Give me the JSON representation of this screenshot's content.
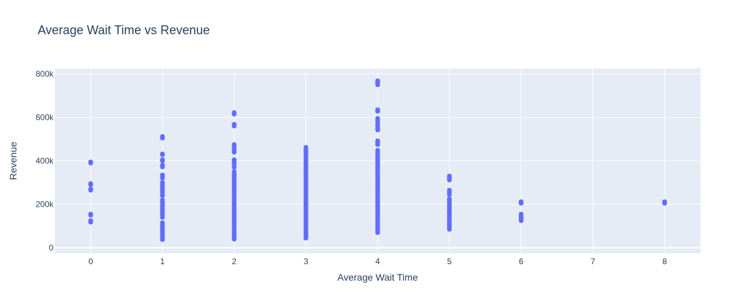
{
  "chart_data": {
    "type": "scatter",
    "title": "Average Wait Time vs Revenue",
    "xlabel": "Average Wait Time",
    "ylabel": "Revenue",
    "xlim": [
      -0.5,
      8.5
    ],
    "ylim": [
      -25000,
      825000
    ],
    "xticks": [
      0,
      1,
      2,
      3,
      4,
      5,
      6,
      7,
      8
    ],
    "yticks": [
      0,
      200000,
      400000,
      600000,
      800000
    ],
    "ytick_labels": [
      "0",
      "200k",
      "400k",
      "600k",
      "800k"
    ],
    "grid": true,
    "legend": "none",
    "colors": {
      "marker": "#636efa",
      "plot_bg": "#e5ecf6",
      "grid": "#ffffff",
      "text": "#2a3f5f"
    },
    "points": [
      {
        "x": 0,
        "y": 395000
      },
      {
        "x": 0,
        "y": 390000
      },
      {
        "x": 0,
        "y": 295000
      },
      {
        "x": 0,
        "y": 290000
      },
      {
        "x": 0,
        "y": 270000
      },
      {
        "x": 0,
        "y": 265000
      },
      {
        "x": 0,
        "y": 155000
      },
      {
        "x": 0,
        "y": 150000
      },
      {
        "x": 0,
        "y": 125000
      },
      {
        "x": 0,
        "y": 118000
      },
      {
        "x": 1,
        "y": 512000
      },
      {
        "x": 1,
        "y": 505000
      },
      {
        "x": 1,
        "y": 432000
      },
      {
        "x": 1,
        "y": 428000
      },
      {
        "x": 1,
        "y": 405000
      },
      {
        "x": 1,
        "y": 400000
      },
      {
        "x": 1,
        "y": 380000
      },
      {
        "x": 1,
        "y": 372000
      },
      {
        "x": 1,
        "y": 335000
      },
      {
        "x": 1,
        "y": 328000
      },
      {
        "x": 1,
        "y": 320000
      },
      {
        "x": 1,
        "y": 300000
      },
      {
        "x": 1,
        "y": 290000
      },
      {
        "x": 1,
        "y": 282000
      },
      {
        "x": 1,
        "y": 272000
      },
      {
        "x": 1,
        "y": 262000
      },
      {
        "x": 1,
        "y": 252000
      },
      {
        "x": 1,
        "y": 240000
      },
      {
        "x": 1,
        "y": 220000
      },
      {
        "x": 1,
        "y": 210000
      },
      {
        "x": 1,
        "y": 200000
      },
      {
        "x": 1,
        "y": 190000
      },
      {
        "x": 1,
        "y": 180000
      },
      {
        "x": 1,
        "y": 170000
      },
      {
        "x": 1,
        "y": 160000
      },
      {
        "x": 1,
        "y": 150000
      },
      {
        "x": 1,
        "y": 140000
      },
      {
        "x": 1,
        "y": 115000
      },
      {
        "x": 1,
        "y": 105000
      },
      {
        "x": 1,
        "y": 95000
      },
      {
        "x": 1,
        "y": 85000
      },
      {
        "x": 1,
        "y": 75000
      },
      {
        "x": 1,
        "y": 65000
      },
      {
        "x": 1,
        "y": 55000
      },
      {
        "x": 1,
        "y": 45000
      },
      {
        "x": 1,
        "y": 38000
      },
      {
        "x": 2,
        "y": 622000
      },
      {
        "x": 2,
        "y": 615000
      },
      {
        "x": 2,
        "y": 568000
      },
      {
        "x": 2,
        "y": 560000
      },
      {
        "x": 2,
        "y": 475000
      },
      {
        "x": 2,
        "y": 465000
      },
      {
        "x": 2,
        "y": 450000
      },
      {
        "x": 2,
        "y": 440000
      },
      {
        "x": 2,
        "y": 405000
      },
      {
        "x": 2,
        "y": 395000
      },
      {
        "x": 2,
        "y": 385000
      },
      {
        "x": 2,
        "y": 370000
      },
      {
        "x": 2,
        "y": 350000
      },
      {
        "x": 2,
        "y": 340000
      },
      {
        "x": 2,
        "y": 330000
      },
      {
        "x": 2,
        "y": 320000
      },
      {
        "x": 2,
        "y": 310000
      },
      {
        "x": 2,
        "y": 300000
      },
      {
        "x": 2,
        "y": 290000
      },
      {
        "x": 2,
        "y": 280000
      },
      {
        "x": 2,
        "y": 270000
      },
      {
        "x": 2,
        "y": 260000
      },
      {
        "x": 2,
        "y": 250000
      },
      {
        "x": 2,
        "y": 240000
      },
      {
        "x": 2,
        "y": 230000
      },
      {
        "x": 2,
        "y": 220000
      },
      {
        "x": 2,
        "y": 210000
      },
      {
        "x": 2,
        "y": 200000
      },
      {
        "x": 2,
        "y": 190000
      },
      {
        "x": 2,
        "y": 180000
      },
      {
        "x": 2,
        "y": 170000
      },
      {
        "x": 2,
        "y": 160000
      },
      {
        "x": 2,
        "y": 150000
      },
      {
        "x": 2,
        "y": 140000
      },
      {
        "x": 2,
        "y": 130000
      },
      {
        "x": 2,
        "y": 120000
      },
      {
        "x": 2,
        "y": 110000
      },
      {
        "x": 2,
        "y": 100000
      },
      {
        "x": 2,
        "y": 90000
      },
      {
        "x": 2,
        "y": 80000
      },
      {
        "x": 2,
        "y": 70000
      },
      {
        "x": 2,
        "y": 60000
      },
      {
        "x": 2,
        "y": 50000
      },
      {
        "x": 2,
        "y": 40000
      },
      {
        "x": 3,
        "y": 462000
      },
      {
        "x": 3,
        "y": 452000
      },
      {
        "x": 3,
        "y": 442000
      },
      {
        "x": 3,
        "y": 432000
      },
      {
        "x": 3,
        "y": 422000
      },
      {
        "x": 3,
        "y": 412000
      },
      {
        "x": 3,
        "y": 402000
      },
      {
        "x": 3,
        "y": 392000
      },
      {
        "x": 3,
        "y": 382000
      },
      {
        "x": 3,
        "y": 372000
      },
      {
        "x": 3,
        "y": 362000
      },
      {
        "x": 3,
        "y": 352000
      },
      {
        "x": 3,
        "y": 342000
      },
      {
        "x": 3,
        "y": 332000
      },
      {
        "x": 3,
        "y": 322000
      },
      {
        "x": 3,
        "y": 312000
      },
      {
        "x": 3,
        "y": 302000
      },
      {
        "x": 3,
        "y": 292000
      },
      {
        "x": 3,
        "y": 282000
      },
      {
        "x": 3,
        "y": 272000
      },
      {
        "x": 3,
        "y": 262000
      },
      {
        "x": 3,
        "y": 252000
      },
      {
        "x": 3,
        "y": 242000
      },
      {
        "x": 3,
        "y": 232000
      },
      {
        "x": 3,
        "y": 222000
      },
      {
        "x": 3,
        "y": 212000
      },
      {
        "x": 3,
        "y": 202000
      },
      {
        "x": 3,
        "y": 192000
      },
      {
        "x": 3,
        "y": 182000
      },
      {
        "x": 3,
        "y": 172000
      },
      {
        "x": 3,
        "y": 162000
      },
      {
        "x": 3,
        "y": 152000
      },
      {
        "x": 3,
        "y": 142000
      },
      {
        "x": 3,
        "y": 132000
      },
      {
        "x": 3,
        "y": 122000
      },
      {
        "x": 3,
        "y": 112000
      },
      {
        "x": 3,
        "y": 102000
      },
      {
        "x": 3,
        "y": 92000
      },
      {
        "x": 3,
        "y": 82000
      },
      {
        "x": 3,
        "y": 72000
      },
      {
        "x": 3,
        "y": 62000
      },
      {
        "x": 3,
        "y": 52000
      },
      {
        "x": 3,
        "y": 45000
      },
      {
        "x": 4,
        "y": 768000
      },
      {
        "x": 4,
        "y": 760000
      },
      {
        "x": 4,
        "y": 750000
      },
      {
        "x": 4,
        "y": 635000
      },
      {
        "x": 4,
        "y": 628000
      },
      {
        "x": 4,
        "y": 595000
      },
      {
        "x": 4,
        "y": 585000
      },
      {
        "x": 4,
        "y": 570000
      },
      {
        "x": 4,
        "y": 560000
      },
      {
        "x": 4,
        "y": 550000
      },
      {
        "x": 4,
        "y": 542000
      },
      {
        "x": 4,
        "y": 492000
      },
      {
        "x": 4,
        "y": 485000
      },
      {
        "x": 4,
        "y": 475000
      },
      {
        "x": 4,
        "y": 448000
      },
      {
        "x": 4,
        "y": 438000
      },
      {
        "x": 4,
        "y": 428000
      },
      {
        "x": 4,
        "y": 418000
      },
      {
        "x": 4,
        "y": 408000
      },
      {
        "x": 4,
        "y": 398000
      },
      {
        "x": 4,
        "y": 388000
      },
      {
        "x": 4,
        "y": 378000
      },
      {
        "x": 4,
        "y": 368000
      },
      {
        "x": 4,
        "y": 358000
      },
      {
        "x": 4,
        "y": 348000
      },
      {
        "x": 4,
        "y": 338000
      },
      {
        "x": 4,
        "y": 328000
      },
      {
        "x": 4,
        "y": 318000
      },
      {
        "x": 4,
        "y": 308000
      },
      {
        "x": 4,
        "y": 298000
      },
      {
        "x": 4,
        "y": 288000
      },
      {
        "x": 4,
        "y": 278000
      },
      {
        "x": 4,
        "y": 268000
      },
      {
        "x": 4,
        "y": 258000
      },
      {
        "x": 4,
        "y": 248000
      },
      {
        "x": 4,
        "y": 238000
      },
      {
        "x": 4,
        "y": 228000
      },
      {
        "x": 4,
        "y": 218000
      },
      {
        "x": 4,
        "y": 208000
      },
      {
        "x": 4,
        "y": 198000
      },
      {
        "x": 4,
        "y": 188000
      },
      {
        "x": 4,
        "y": 178000
      },
      {
        "x": 4,
        "y": 168000
      },
      {
        "x": 4,
        "y": 158000
      },
      {
        "x": 4,
        "y": 148000
      },
      {
        "x": 4,
        "y": 138000
      },
      {
        "x": 4,
        "y": 128000
      },
      {
        "x": 4,
        "y": 118000
      },
      {
        "x": 4,
        "y": 108000
      },
      {
        "x": 4,
        "y": 98000
      },
      {
        "x": 4,
        "y": 88000
      },
      {
        "x": 4,
        "y": 78000
      },
      {
        "x": 4,
        "y": 70000
      },
      {
        "x": 5,
        "y": 330000
      },
      {
        "x": 5,
        "y": 322000
      },
      {
        "x": 5,
        "y": 312000
      },
      {
        "x": 5,
        "y": 265000
      },
      {
        "x": 5,
        "y": 255000
      },
      {
        "x": 5,
        "y": 245000
      },
      {
        "x": 5,
        "y": 225000
      },
      {
        "x": 5,
        "y": 215000
      },
      {
        "x": 5,
        "y": 205000
      },
      {
        "x": 5,
        "y": 195000
      },
      {
        "x": 5,
        "y": 185000
      },
      {
        "x": 5,
        "y": 175000
      },
      {
        "x": 5,
        "y": 165000
      },
      {
        "x": 5,
        "y": 155000
      },
      {
        "x": 5,
        "y": 145000
      },
      {
        "x": 5,
        "y": 135000
      },
      {
        "x": 5,
        "y": 125000
      },
      {
        "x": 5,
        "y": 115000
      },
      {
        "x": 5,
        "y": 105000
      },
      {
        "x": 5,
        "y": 95000
      },
      {
        "x": 5,
        "y": 85000
      },
      {
        "x": 6,
        "y": 212000
      },
      {
        "x": 6,
        "y": 205000
      },
      {
        "x": 6,
        "y": 155000
      },
      {
        "x": 6,
        "y": 145000
      },
      {
        "x": 6,
        "y": 135000
      },
      {
        "x": 6,
        "y": 125000
      },
      {
        "x": 8,
        "y": 212000
      },
      {
        "x": 8,
        "y": 205000
      }
    ]
  }
}
